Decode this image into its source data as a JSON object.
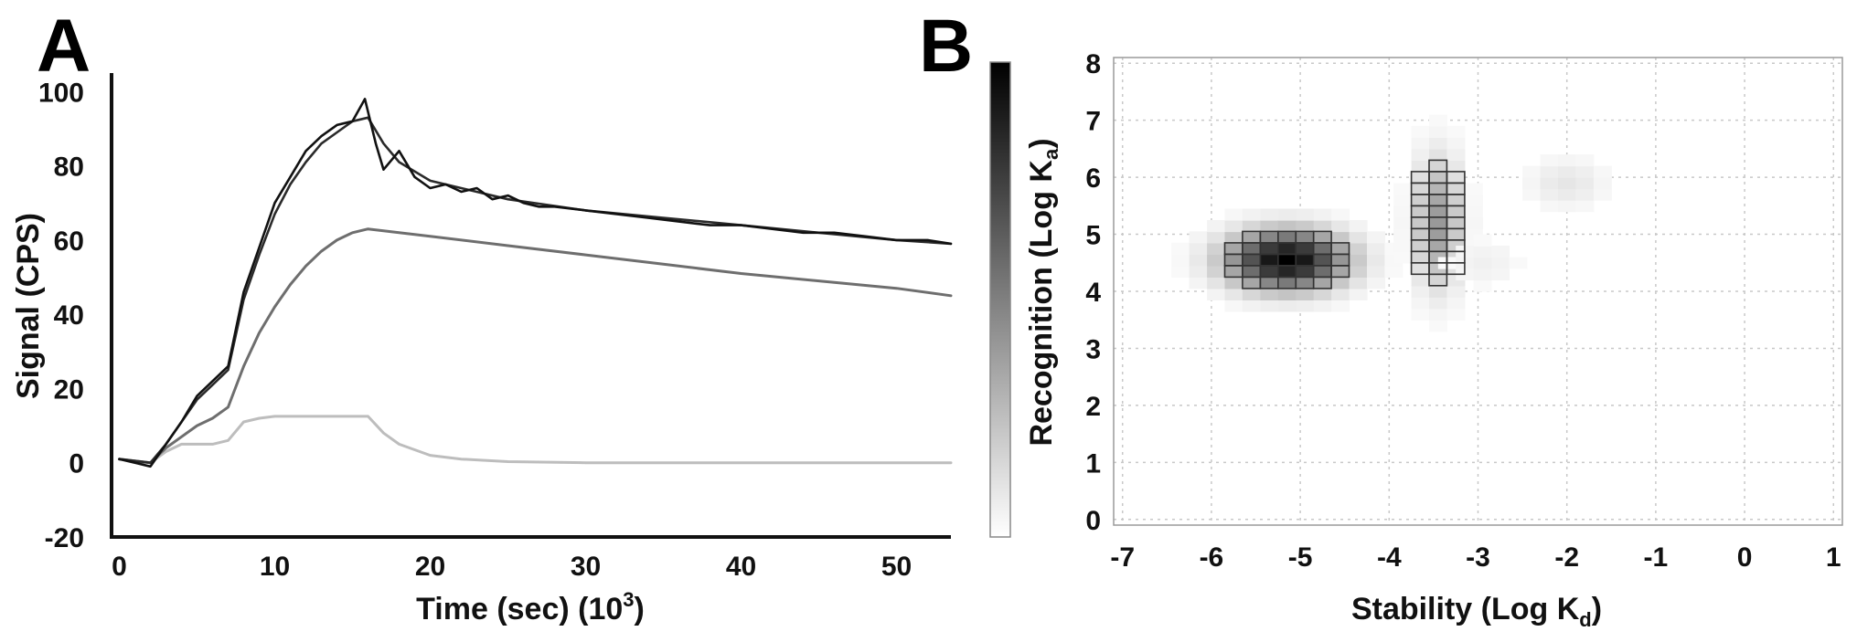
{
  "panel_labels": {
    "a": "A",
    "b": "B"
  },
  "chart_data": [
    {
      "id": "A",
      "type": "line",
      "xlabel": "Time (sec) (10",
      "xlabel_sup": "3",
      "xlabel_close": ")",
      "ylabel": "Signal (CPS)",
      "xlim": [
        -0.5,
        53.5
      ],
      "ylim": [
        -20,
        105
      ],
      "xticks": [
        0,
        10,
        20,
        30,
        40,
        50
      ],
      "yticks": [
        -20,
        0,
        20,
        40,
        60,
        80,
        100
      ],
      "grid": false,
      "legend": "none",
      "series": [
        {
          "role": "measured",
          "color": "#111111",
          "x": [
            0,
            1,
            2,
            3,
            4,
            5,
            6,
            7,
            8,
            9,
            10,
            11,
            12,
            13,
            14,
            15,
            15.8,
            16.5,
            17,
            18,
            19,
            20,
            21,
            22,
            23,
            24,
            25,
            26,
            27,
            28,
            30,
            32,
            34,
            36,
            38,
            40,
            42,
            44,
            46,
            48,
            50,
            52,
            53.5
          ],
          "y": [
            1,
            0,
            -1,
            5,
            11,
            18,
            22,
            26,
            46,
            58,
            70,
            77,
            84,
            88,
            91,
            92,
            98,
            86,
            79,
            84,
            77,
            74,
            75,
            73,
            74,
            71,
            72,
            70,
            69,
            69,
            68,
            67,
            66,
            65,
            64,
            64,
            63,
            62,
            62,
            61,
            60,
            60,
            59
          ]
        },
        {
          "role": "fit",
          "color": "#2a2a2a",
          "x": [
            0,
            2,
            3,
            4,
            5,
            6,
            7,
            8,
            9,
            10,
            11,
            12,
            13,
            14,
            15,
            16,
            17,
            18,
            20,
            22,
            25,
            30,
            35,
            40,
            45,
            50,
            53.5
          ],
          "y": [
            1,
            0,
            5,
            11,
            17,
            21,
            25,
            44,
            56,
            67,
            75,
            81,
            86,
            89,
            92,
            93,
            86,
            81,
            76,
            74,
            71,
            68,
            66,
            64,
            62,
            60,
            59
          ]
        },
        {
          "role": "component-1",
          "color": "#6e6e6e",
          "x": [
            0,
            2,
            3,
            4,
            5,
            6,
            7,
            8,
            9,
            10,
            11,
            12,
            13,
            14,
            15,
            16,
            17,
            20,
            25,
            30,
            35,
            40,
            45,
            50,
            53.5
          ],
          "y": [
            1,
            0,
            4,
            7,
            10,
            12,
            15,
            26,
            35,
            42,
            48,
            53,
            57,
            60,
            62,
            63,
            62.5,
            61,
            58.5,
            56,
            53.5,
            51,
            49,
            47,
            45
          ]
        },
        {
          "role": "component-2",
          "color": "#bdbdbd",
          "x": [
            0,
            2,
            3,
            4,
            5,
            6,
            7,
            8,
            9,
            10,
            12,
            14,
            16,
            17,
            18,
            20,
            22,
            25,
            30,
            40,
            50,
            53.5
          ],
          "y": [
            1,
            0,
            3,
            5,
            5,
            5,
            6,
            11,
            12,
            12.5,
            12.5,
            12.5,
            12.5,
            8,
            5,
            2,
            1,
            0.3,
            0,
            0,
            0,
            0
          ]
        }
      ]
    },
    {
      "id": "B",
      "type": "heatmap",
      "xlabel": "Stability (Log K",
      "xlabel_sub": "d",
      "xlabel_close": ")",
      "ylabel": "Recognition (Log K",
      "ylabel_sub": "a",
      "ylabel_close": ")",
      "xlim": [
        -7.1,
        1.1
      ],
      "ylim": [
        -0.1,
        8.1
      ],
      "xticks": [
        -7,
        -6,
        -5,
        -4,
        -3,
        -2,
        -1,
        0,
        1
      ],
      "yticks": [
        0,
        1,
        2,
        3,
        4,
        5,
        6,
        7,
        8
      ],
      "grid": true,
      "colorbar": {
        "min_color": "#ffffff",
        "max_color": "#000000",
        "position": "left"
      },
      "cell_size": [
        0.2,
        0.2
      ],
      "blobs": [
        {
          "center": [
            -5.15,
            4.55
          ],
          "sigma": [
            0.45,
            0.35
          ],
          "peak": 1.0,
          "outlined": true,
          "outline_threshold": 0.3
        },
        {
          "center": [
            -3.45,
            5.2
          ],
          "sigma": [
            0.18,
            0.75
          ],
          "peak": 0.4,
          "outlined": true,
          "outline_threshold": 0.12
        },
        {
          "center": [
            -2.0,
            5.9
          ],
          "sigma": [
            0.3,
            0.3
          ],
          "peak": 0.1,
          "outlined": false
        },
        {
          "center": [
            -2.95,
            4.5
          ],
          "sigma": [
            0.3,
            0.3
          ],
          "peak": 0.06,
          "outlined": false
        }
      ]
    }
  ]
}
